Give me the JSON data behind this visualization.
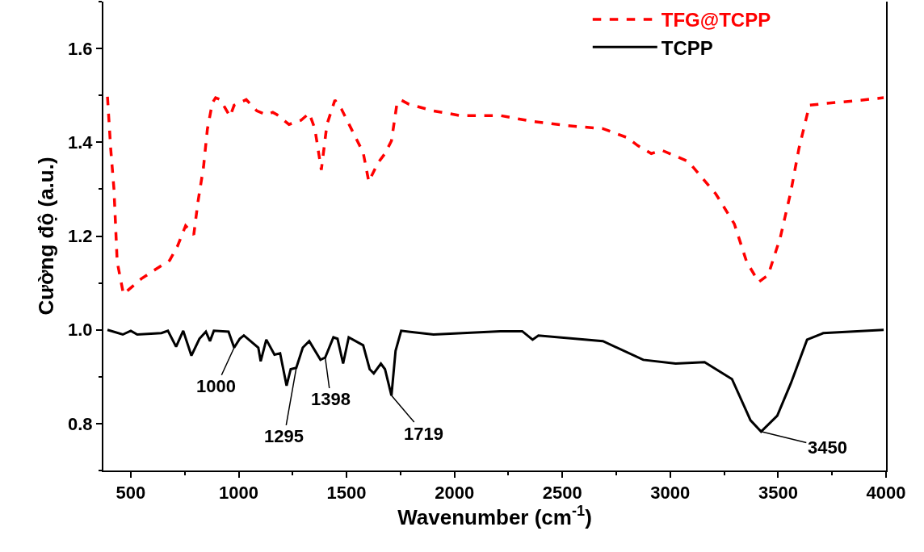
{
  "chart_data": {
    "type": "line",
    "xlabel": "Wavenumber (cm$^{-1}$)",
    "ylabel": "Cường độ (a.u.)",
    "xlim": [
      373,
      4000
    ],
    "xticks": [
      500,
      1000,
      1500,
      2000,
      2500,
      3000,
      3500,
      4000
    ],
    "ylim": [
      0.7,
      1.7
    ],
    "yticks": [
      0.8,
      {
        "value": 1,
        "label": "1.0"
      },
      1.2,
      1.4,
      1.6
    ],
    "grid": false,
    "legend": "top right",
    "marker": "none",
    "series": [
      {
        "name": "TFG@TCPP",
        "color": "#ff0000",
        "line_style": "dashed",
        "x": [
          392,
          407,
          422,
          437,
          466,
          549,
          612,
          680,
          717,
          754,
          792,
          811,
          837,
          855,
          878,
          893,
          915,
          960,
          979,
          1035,
          1084,
          1128,
          1158,
          1177,
          1233,
          1289,
          1327,
          1353,
          1383,
          1409,
          1446,
          1476,
          1514,
          1577,
          1603,
          1644,
          1678,
          1708,
          1734,
          1753,
          1790,
          1903,
          2026,
          2213,
          2355,
          2512,
          2688,
          2800,
          2849,
          2912,
          2961,
          3084,
          3211,
          3297,
          3354,
          3410,
          3454,
          3510,
          3559,
          3596,
          3645,
          3746,
          3847,
          3989
        ],
        "values": [
          1.497,
          1.386,
          1.3,
          1.145,
          1.076,
          1.109,
          1.128,
          1.148,
          1.179,
          1.222,
          1.203,
          1.272,
          1.347,
          1.428,
          1.484,
          1.495,
          1.491,
          1.455,
          1.479,
          1.491,
          1.467,
          1.459,
          1.464,
          1.459,
          1.438,
          1.447,
          1.462,
          1.429,
          1.341,
          1.438,
          1.49,
          1.471,
          1.436,
          1.378,
          1.316,
          1.355,
          1.376,
          1.403,
          1.484,
          1.49,
          1.481,
          1.467,
          1.457,
          1.457,
          1.445,
          1.436,
          1.429,
          1.41,
          1.393,
          1.376,
          1.383,
          1.359,
          1.29,
          1.226,
          1.145,
          1.102,
          1.117,
          1.197,
          1.295,
          1.386,
          1.479,
          1.484,
          1.488,
          1.495
        ]
      },
      {
        "name": "TCPP",
        "color": "#000000",
        "line_style": "solid",
        "x": [
          392,
          463,
          500,
          530,
          642,
          672,
          710,
          743,
          781,
          818,
          848,
          867,
          885,
          953,
          979,
          1005,
          1024,
          1091,
          1102,
          1128,
          1166,
          1192,
          1222,
          1241,
          1267,
          1297,
          1327,
          1379,
          1401,
          1439,
          1458,
          1484,
          1510,
          1577,
          1607,
          1626,
          1659,
          1678,
          1708,
          1727,
          1753,
          1903,
          2213,
          2314,
          2362,
          2389,
          2688,
          2875,
          3025,
          3159,
          3286,
          3372,
          3421,
          3496,
          3559,
          3634,
          3709,
          3989
        ],
        "values": [
          1.0,
          0.99,
          0.998,
          0.99,
          0.993,
          0.998,
          0.964,
          0.998,
          0.945,
          0.981,
          0.996,
          0.976,
          0.998,
          0.996,
          0.962,
          0.981,
          0.988,
          0.962,
          0.933,
          0.979,
          0.947,
          0.95,
          0.881,
          0.916,
          0.919,
          0.962,
          0.976,
          0.936,
          0.941,
          0.984,
          0.981,
          0.928,
          0.984,
          0.967,
          0.916,
          0.907,
          0.928,
          0.916,
          0.86,
          0.955,
          0.998,
          0.99,
          0.997,
          0.997,
          0.979,
          0.988,
          0.976,
          0.936,
          0.928,
          0.931,
          0.895,
          0.807,
          0.783,
          0.817,
          0.886,
          0.979,
          0.993,
          1.0
        ]
      }
    ],
    "annotations": [
      {
        "text": "1000",
        "x": 979,
        "y": 0.962
      },
      {
        "text": "1295",
        "x": 1267,
        "y": 0.919
      },
      {
        "text": "1398",
        "x": 1401,
        "y": 0.941
      },
      {
        "text": "1719",
        "x": 1708,
        "y": 0.86
      },
      {
        "text": "3450",
        "x": 3421,
        "y": 0.783
      }
    ]
  }
}
